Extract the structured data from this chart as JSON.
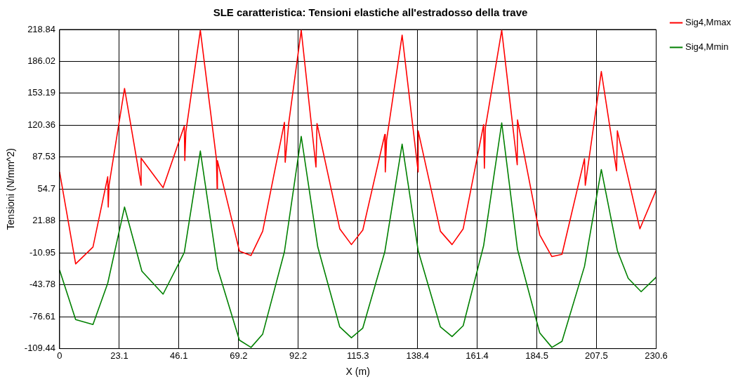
{
  "chart_data": {
    "type": "line",
    "title": "SLE caratteristica: Tensioni elastiche all'estradosso della trave",
    "xlabel": "X (m)",
    "ylabel": "Tensioni (N/mm^2)",
    "xlim": [
      0,
      230.6
    ],
    "xticks": [
      0,
      23.1,
      46.1,
      69.2,
      92.2,
      115.3,
      138.4,
      161.4,
      184.5,
      207.5,
      230.6
    ],
    "ylim": [
      -109.44,
      218.84
    ],
    "yticks": [
      -109.44,
      -76.61,
      -43.78,
      -10.95,
      21.88,
      54.7,
      87.53,
      120.36,
      153.19,
      186.02,
      218.84
    ],
    "grid": true,
    "legend": "top right",
    "marker": "none",
    "line_style": "solid",
    "series": [
      {
        "name": "Sig4,Mmax",
        "color": "#ff0000",
        "x": [
          0,
          6.2,
          12.9,
          18.6,
          18.8,
          19.1,
          25.1,
          31.5,
          31.5,
          40.0,
          48.2,
          48.4,
          48.8,
          54.4,
          60.6,
          60.9,
          61.0,
          69.5,
          74.0,
          78.5,
          86.9,
          87.2,
          88.6,
          93.4,
          99.1,
          99.5,
          108.3,
          112.8,
          117.2,
          125.7,
          125.9,
          126.4,
          132.4,
          138.6,
          138.6,
          147.2,
          151.7,
          156.0,
          163.9,
          164.2,
          164.6,
          170.9,
          176.9,
          177.0,
          185.6,
          190.3,
          194.2,
          202.9,
          203.2,
          209.4,
          215.3,
          215.6,
          224.3,
          230.6
        ],
        "values": [
          72.3,
          -22.3,
          -4.9,
          67.3,
          36.2,
          58.6,
          158.2,
          58.6,
          86.5,
          56.1,
          119.6,
          84.0,
          113.4,
          218,
          86.0,
          54.9,
          84.0,
          -9.1,
          -13.6,
          11.3,
          123.3,
          82.3,
          123.3,
          218,
          77.3,
          122.1,
          13.8,
          -2.4,
          12.5,
          110.9,
          72.3,
          105.0,
          213.0,
          72.3,
          114.6,
          11.3,
          -2.4,
          13.8,
          120.9,
          76.1,
          118.0,
          218,
          79.7,
          125.8,
          7.6,
          -14.8,
          -12.4,
          86.0,
          58.6,
          175.6,
          73.5,
          114.6,
          13.8,
          53.6
        ]
      },
      {
        "name": "Sig4,Mmin",
        "color": "#008000",
        "x": [
          0,
          6.2,
          12.9,
          18.6,
          25.1,
          31.8,
          40.0,
          48.2,
          54.4,
          61.1,
          69.5,
          74.0,
          78.5,
          86.9,
          93.4,
          99.8,
          108.3,
          112.8,
          117.2,
          125.7,
          132.4,
          138.6,
          147.2,
          151.7,
          156.0,
          163.9,
          170.9,
          177.0,
          185.6,
          190.3,
          194.2,
          202.9,
          209.4,
          215.6,
          219.8,
          224.8,
          230.6
        ],
        "values": [
          -28.6,
          -79.6,
          -84.6,
          -42.2,
          36.2,
          -29.8,
          -53.4,
          -10.6,
          93.9,
          -27.3,
          -100.7,
          -108.2,
          -94.5,
          -9.9,
          108.9,
          -4.9,
          -87.1,
          -98.3,
          -88.3,
          -9.9,
          100.9,
          -8.6,
          -87.1,
          -97.0,
          -85.9,
          -3.6,
          122.8,
          -7.4,
          -93.3,
          -108.2,
          -102.0,
          -24.8,
          74.8,
          -8.6,
          -37.2,
          -50.9,
          -36.0
        ]
      }
    ]
  }
}
